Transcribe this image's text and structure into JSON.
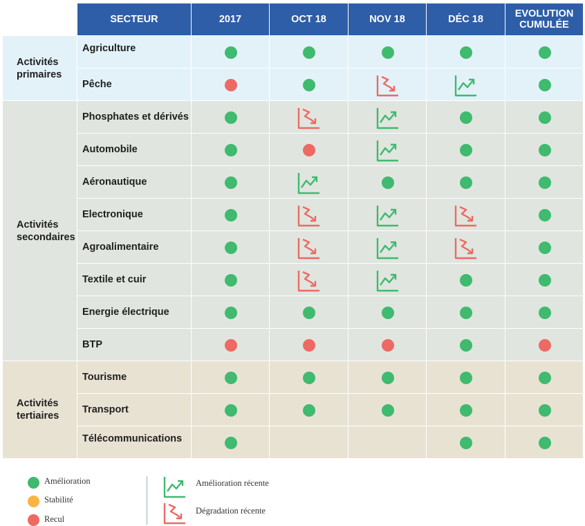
{
  "colors": {
    "header": "#2e5ea8",
    "primaire": "#e3f2f9",
    "secondaire": "#e0e5df",
    "tertiaire": "#e8e2d3",
    "amelioration": "#3fba6e",
    "stabilite": "#f9b544",
    "recul": "#ec6a63"
  },
  "header": {
    "sector": "SECTEUR",
    "columns": [
      "2017",
      "OCT 18",
      "NOV 18",
      "DÉC 18",
      "EVOLUTION CUMULÉE"
    ]
  },
  "groups": [
    {
      "name": "primaire",
      "label": "Activités primaires",
      "rows": [
        {
          "label": "Agriculture",
          "values": [
            "A",
            "A",
            "A",
            "A",
            "A"
          ]
        },
        {
          "label": "Pêche",
          "values": [
            "R",
            "A",
            "DR",
            "AR",
            "A"
          ]
        }
      ]
    },
    {
      "name": "secondaire",
      "label": "Activités secondaires",
      "rows": [
        {
          "label": "Phosphates et dérivés",
          "values": [
            "A",
            "DR",
            "AR",
            "A",
            "A"
          ]
        },
        {
          "label": "Automobile",
          "values": [
            "A",
            "R",
            "AR",
            "A",
            "A"
          ]
        },
        {
          "label": "Aéronautique",
          "values": [
            "A",
            "AR",
            "A",
            "A",
            "A"
          ]
        },
        {
          "label": "Electronique",
          "values": [
            "A",
            "DR",
            "AR",
            "DR",
            "A"
          ]
        },
        {
          "label": "Agroalimentaire",
          "values": [
            "A",
            "DR",
            "AR",
            "DR",
            "A"
          ]
        },
        {
          "label": "Textile et cuir",
          "values": [
            "A",
            "DR",
            "AR",
            "A",
            "A"
          ]
        },
        {
          "label": "Energie électrique",
          "values": [
            "A",
            "A",
            "A",
            "A",
            "A"
          ]
        },
        {
          "label": "BTP",
          "values": [
            "R",
            "R",
            "R",
            "A",
            "R"
          ]
        }
      ]
    },
    {
      "name": "tertiaire",
      "label": "Activités tertiaires",
      "rows": [
        {
          "label": "Tourisme",
          "values": [
            "A",
            "A",
            "A",
            "A",
            "A"
          ]
        },
        {
          "label": "Transport",
          "values": [
            "A",
            "A",
            "A",
            "A",
            "A"
          ]
        },
        {
          "label": "Télécommunications",
          "values": [
            "A",
            "",
            "",
            "A",
            "A"
          ]
        }
      ]
    }
  ],
  "legend": {
    "amelioration": "Amélioration",
    "stabilite": "Stabilité",
    "recul": "Recul",
    "amelioration_recente": "Amélioration récente",
    "degradation_recente": "Dégradation récente"
  }
}
